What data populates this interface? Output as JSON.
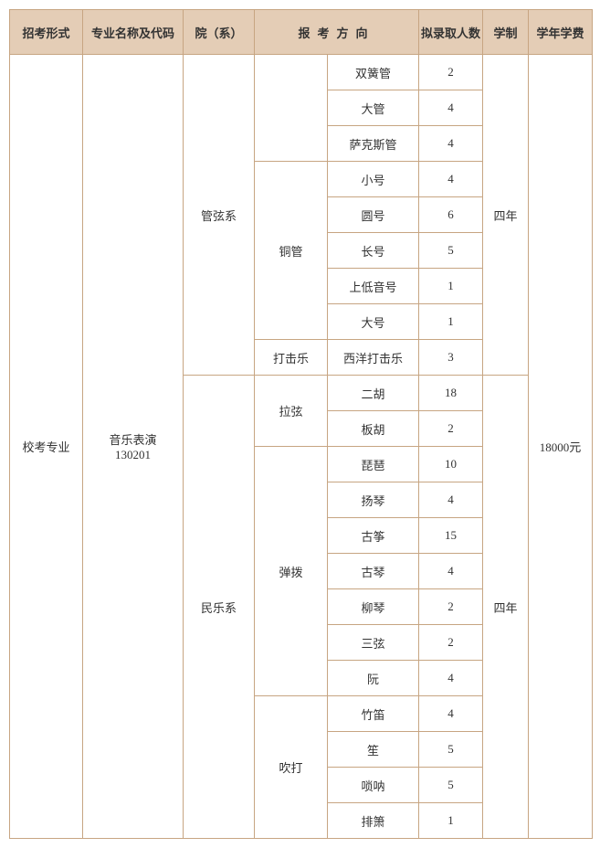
{
  "headers": {
    "type": "招考形式",
    "major": "专业名称及代码",
    "dept": "院（系）",
    "direction": "报考方向",
    "num": "拟录取人数",
    "years": "学制",
    "fee": "学年学费"
  },
  "type_val": "校考专业",
  "major_name": "音乐表演",
  "major_code": "130201",
  "fee_val": "18000元",
  "years_val": "四年",
  "depts": {
    "guanxian": "管弦系",
    "minle": "民乐系"
  },
  "categories": {
    "tongguan": "铜管",
    "dajile": "打击乐",
    "laxian": "拉弦",
    "tanbo": "弹拨",
    "chuida": "吹打"
  },
  "rows": {
    "r1": {
      "instr": "双簧管",
      "num": "2"
    },
    "r2": {
      "instr": "大管",
      "num": "4"
    },
    "r3": {
      "instr": "萨克斯管",
      "num": "4"
    },
    "r4": {
      "instr": "小号",
      "num": "4"
    },
    "r5": {
      "instr": "圆号",
      "num": "6"
    },
    "r6": {
      "instr": "长号",
      "num": "5"
    },
    "r7": {
      "instr": "上低音号",
      "num": "1"
    },
    "r8": {
      "instr": "大号",
      "num": "1"
    },
    "r9": {
      "instr": "西洋打击乐",
      "num": "3"
    },
    "r10": {
      "instr": "二胡",
      "num": "18"
    },
    "r11": {
      "instr": "板胡",
      "num": "2"
    },
    "r12": {
      "instr": "琵琶",
      "num": "10"
    },
    "r13": {
      "instr": "扬琴",
      "num": "4"
    },
    "r14": {
      "instr": "古筝",
      "num": "15"
    },
    "r15": {
      "instr": "古琴",
      "num": "4"
    },
    "r16": {
      "instr": "柳琴",
      "num": "2"
    },
    "r17": {
      "instr": "三弦",
      "num": "2"
    },
    "r18": {
      "instr": "阮",
      "num": "4"
    },
    "r19": {
      "instr": "竹笛",
      "num": "4"
    },
    "r20": {
      "instr": "笙",
      "num": "5"
    },
    "r21": {
      "instr": "唢呐",
      "num": "5"
    },
    "r22": {
      "instr": "排箫",
      "num": "1"
    }
  }
}
